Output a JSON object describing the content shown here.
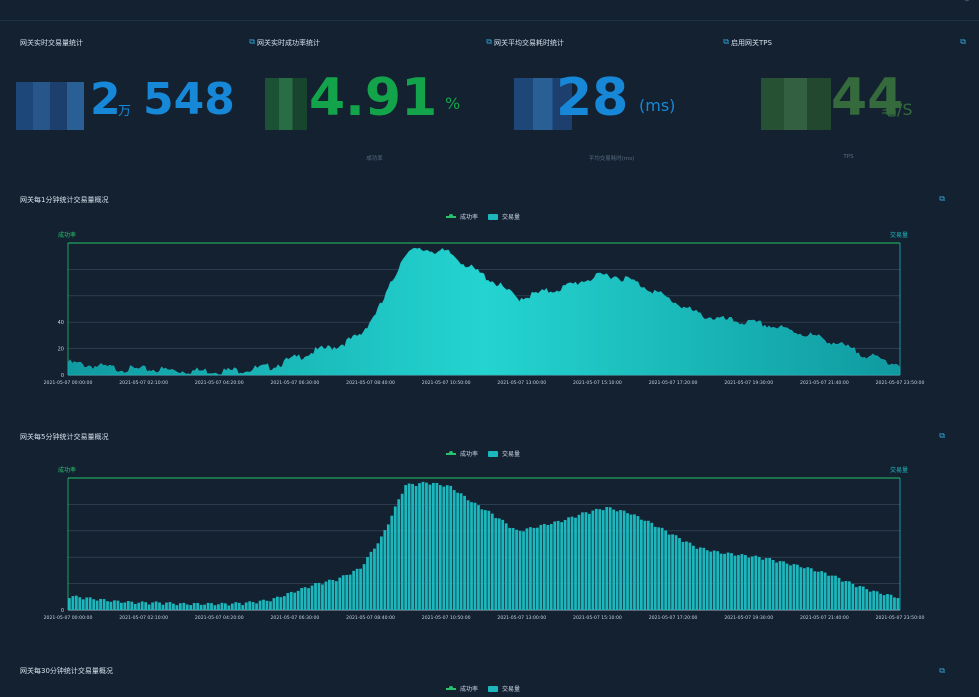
{
  "topbar": {
    "link": "",
    "icon": "settings-icon"
  },
  "kpis": [
    {
      "title": "网关实时交易量统计",
      "value": "2",
      "unit": "万",
      "value2": "548",
      "sub": "",
      "color": "#1788d8"
    },
    {
      "title": "网关实时成功率统计",
      "value": "4.91",
      "unit": "%",
      "sub": "成功率",
      "color": "#13a34a"
    },
    {
      "title": "网关平均交易耗时统计",
      "value": "28",
      "unit": "(ms)",
      "sub": "平均交易耗时(ms)",
      "color": "#1788d8"
    },
    {
      "title": "启用网关TPS",
      "value": "44",
      "unit": "笔/S",
      "sub": "TPS",
      "color": "#356a3c"
    }
  ],
  "charts": [
    {
      "title": "网关每1分钟统计交易量概况",
      "left_axis_label": "成功率",
      "right_axis_label": "交易量",
      "type": "area"
    },
    {
      "title": "网关每5分钟统计交易量概况",
      "left_axis_label": "成功率",
      "right_axis_label": "交易量",
      "type": "bar"
    },
    {
      "title": "网关每30分钟统计交易量概况"
    }
  ],
  "legend": {
    "success": "成功率",
    "volume": "交易量"
  },
  "chart_data": [
    {
      "type": "area",
      "title": "网关每1分钟统计交易量概况",
      "ylabel_left": "成功率",
      "ylabel_right": "交易量",
      "y_ticks_left": [
        "0",
        "20",
        "40"
      ],
      "x_ticks": [
        "2021-05-07 00:00:00",
        "2021-05-07 02:10:00",
        "2021-05-07 04:20:00",
        "2021-05-07 06:30:00",
        "2021-05-07 08:40:00",
        "2021-05-07 10:50:00",
        "2021-05-07 13:00:00",
        "2021-05-07 15:10:00",
        "2021-05-07 17:20:00",
        "2021-05-07 19:30:00",
        "2021-05-07 21:40:00",
        "2021-05-07 23:50:00"
      ],
      "series": [
        {
          "name": "交易量",
          "values": [
            9,
            7,
            5,
            4,
            4,
            3,
            3,
            3,
            4,
            6,
            12,
            18,
            22,
            30,
            55,
            93,
            95,
            92,
            80,
            70,
            58,
            62,
            66,
            72,
            76,
            72,
            64,
            55,
            46,
            42,
            40,
            38,
            34,
            30,
            25,
            18,
            12,
            8
          ]
        },
        {
          "name": "成功率",
          "values": [
            100,
            100,
            100,
            100,
            100,
            100,
            100,
            100,
            100,
            100,
            100,
            100,
            100,
            100,
            100,
            100,
            100,
            100,
            100,
            100,
            100,
            100,
            100,
            100,
            100,
            100,
            100,
            100,
            100,
            100,
            100,
            100,
            100,
            100,
            100,
            100,
            100,
            100
          ]
        }
      ]
    },
    {
      "type": "bar",
      "title": "网关每5分钟统计交易量概况",
      "ylabel_left": "成功率",
      "ylabel_right": "交易量",
      "y_ticks_left": [
        "0"
      ],
      "x_ticks": [
        "2021-05-07 00:00:00",
        "2021-05-07 02:10:00",
        "2021-05-07 04:20:00",
        "2021-05-07 06:30:00",
        "2021-05-07 08:40:00",
        "2021-05-07 10:50:00",
        "2021-05-07 13:00:00",
        "2021-05-07 15:10:00",
        "2021-05-07 17:20:00",
        "2021-05-07 19:30:00",
        "2021-05-07 21:40:00",
        "2021-05-07 23:50:00"
      ],
      "series": [
        {
          "name": "交易量",
          "values": [
            9,
            7,
            5,
            4,
            4,
            3,
            3,
            3,
            4,
            6,
            12,
            18,
            22,
            30,
            55,
            93,
            95,
            92,
            80,
            70,
            58,
            62,
            66,
            72,
            76,
            72,
            64,
            55,
            46,
            42,
            40,
            38,
            34,
            30,
            25,
            18,
            12,
            8
          ]
        },
        {
          "name": "成功率",
          "values": [
            100,
            100,
            100,
            100,
            100,
            100,
            100,
            100,
            100,
            100,
            100,
            100,
            100,
            100,
            100,
            100,
            100,
            100,
            100,
            100,
            100,
            100,
            100,
            100,
            100,
            100,
            100,
            100,
            100,
            100,
            100,
            100,
            100,
            100,
            100,
            100,
            100,
            100
          ]
        }
      ]
    }
  ]
}
